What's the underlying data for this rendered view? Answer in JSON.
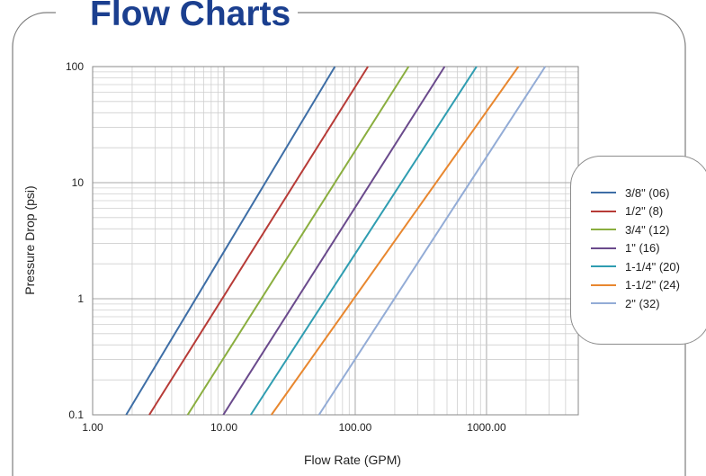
{
  "title": "Flow Charts",
  "chart_data": {
    "type": "line",
    "x_scale": "log",
    "y_scale": "log",
    "xlim": [
      1,
      5000
    ],
    "ylim": [
      0.1,
      100
    ],
    "xlabel": "Flow Rate (GPM)",
    "ylabel": "Pressure Drop (psi)",
    "x_ticks": [
      "1.00",
      "10.00",
      "100.00",
      "1000.00"
    ],
    "y_ticks": [
      "0.1",
      "1",
      "10",
      "100"
    ],
    "grid": "minor log gridlines on",
    "legend_position": "right",
    "series": [
      {
        "name": "3/8\" (06)",
        "color": "#3e6ea6",
        "points": [
          [
            1.8,
            0.1
          ],
          [
            70,
            100
          ]
        ]
      },
      {
        "name": "1/2\" (8)",
        "color": "#b73b37",
        "points": [
          [
            2.7,
            0.1
          ],
          [
            125,
            100
          ]
        ]
      },
      {
        "name": "3/4\" (12)",
        "color": "#8aae3f",
        "points": [
          [
            5.3,
            0.1
          ],
          [
            255,
            100
          ]
        ]
      },
      {
        "name": "1\" (16)",
        "color": "#6a4a8c",
        "points": [
          [
            9.9,
            0.1
          ],
          [
            480,
            100
          ]
        ]
      },
      {
        "name": "1-1/4\" (20)",
        "color": "#2f9db1",
        "points": [
          [
            16,
            0.1
          ],
          [
            840,
            100
          ]
        ]
      },
      {
        "name": "1-1/2\" (24)",
        "color": "#e8872f",
        "points": [
          [
            23,
            0.1
          ],
          [
            1750,
            100
          ]
        ]
      },
      {
        "name": "2\" (32)",
        "color": "#93acd6",
        "points": [
          [
            53,
            0.1
          ],
          [
            2800,
            100
          ]
        ]
      }
    ]
  }
}
